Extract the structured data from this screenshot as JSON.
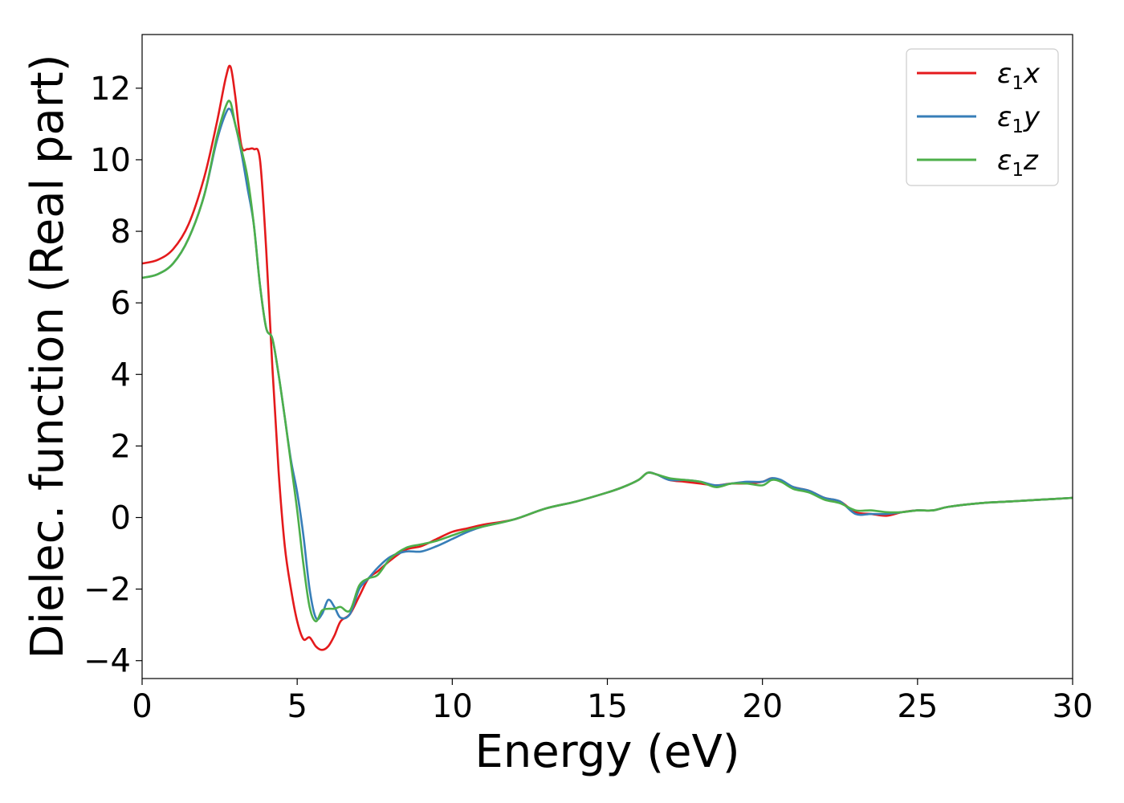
{
  "chart_data": {
    "type": "line",
    "xlabel": "Energy (eV)",
    "ylabel": "Dielec. function (Real part)",
    "xlim": [
      0,
      30
    ],
    "ylim": [
      -4.5,
      13.5
    ],
    "xticks": [
      0,
      5,
      10,
      15,
      20,
      25,
      30
    ],
    "yticks": [
      -4,
      -2,
      0,
      2,
      4,
      6,
      8,
      10,
      12
    ],
    "grid": false,
    "legend_position": "top-right",
    "series": [
      {
        "name": "ε1x",
        "legend": {
          "symbol": "ε",
          "sub": "1",
          "var": "x"
        },
        "color": "#e41a1c",
        "x": [
          0,
          0.5,
          1.0,
          1.5,
          2.0,
          2.4,
          2.7,
          2.85,
          3.0,
          3.2,
          3.4,
          3.6,
          3.8,
          4.0,
          4.2,
          4.4,
          4.6,
          4.8,
          5.0,
          5.2,
          5.4,
          5.6,
          5.8,
          6.0,
          6.2,
          6.4,
          6.7,
          7.0,
          7.3,
          7.6,
          8.0,
          8.5,
          9.0,
          9.5,
          10.0,
          10.5,
          11.0,
          12.0,
          13.0,
          14.0,
          15.0,
          15.5,
          16.0,
          16.3,
          16.6,
          17.0,
          17.5,
          18.0,
          18.5,
          19.0,
          19.5,
          20.0,
          20.3,
          20.6,
          21.0,
          21.5,
          22.0,
          22.5,
          23.0,
          23.5,
          24.0,
          24.5,
          25.0,
          25.5,
          26.0,
          27.0,
          28.0,
          29.0,
          30.0
        ],
        "values": [
          7.1,
          7.2,
          7.5,
          8.2,
          9.5,
          11.0,
          12.3,
          12.6,
          11.8,
          10.4,
          10.3,
          10.3,
          10.0,
          7.5,
          4.2,
          1.3,
          -0.8,
          -2.0,
          -2.9,
          -3.4,
          -3.35,
          -3.6,
          -3.7,
          -3.6,
          -3.3,
          -2.9,
          -2.7,
          -2.2,
          -1.7,
          -1.5,
          -1.2,
          -0.9,
          -0.8,
          -0.6,
          -0.4,
          -0.3,
          -0.2,
          -0.05,
          0.25,
          0.45,
          0.7,
          0.85,
          1.05,
          1.25,
          1.2,
          1.05,
          1.0,
          0.95,
          0.9,
          0.95,
          0.95,
          1.0,
          1.1,
          1.0,
          0.85,
          0.75,
          0.55,
          0.45,
          0.15,
          0.1,
          0.05,
          0.15,
          0.2,
          0.2,
          0.3,
          0.4,
          0.45,
          0.5,
          0.55
        ]
      },
      {
        "name": "ε1y",
        "legend": {
          "symbol": "ε",
          "sub": "1",
          "var": "y"
        },
        "color": "#377eb8",
        "x": [
          0,
          0.5,
          1.0,
          1.5,
          2.0,
          2.4,
          2.7,
          2.85,
          3.0,
          3.2,
          3.4,
          3.6,
          3.8,
          4.0,
          4.2,
          4.4,
          4.6,
          4.8,
          5.0,
          5.2,
          5.4,
          5.6,
          5.8,
          6.0,
          6.2,
          6.4,
          6.7,
          7.0,
          7.3,
          7.6,
          8.0,
          8.5,
          9.0,
          9.5,
          10.0,
          10.5,
          11.0,
          12.0,
          13.0,
          14.0,
          15.0,
          15.5,
          16.0,
          16.3,
          16.6,
          17.0,
          17.5,
          18.0,
          18.5,
          19.0,
          19.5,
          20.0,
          20.3,
          20.6,
          21.0,
          21.5,
          22.0,
          22.5,
          23.0,
          23.5,
          24.0,
          24.5,
          25.0,
          25.5,
          26.0,
          27.0,
          28.0,
          29.0,
          30.0
        ],
        "values": [
          6.7,
          6.8,
          7.1,
          7.8,
          9.0,
          10.5,
          11.3,
          11.4,
          11.0,
          10.2,
          9.2,
          8.2,
          6.5,
          5.3,
          5.0,
          4.0,
          2.8,
          1.6,
          0.7,
          -0.5,
          -2.0,
          -2.8,
          -2.7,
          -2.3,
          -2.5,
          -2.8,
          -2.7,
          -2.0,
          -1.7,
          -1.4,
          -1.1,
          -0.95,
          -0.95,
          -0.8,
          -0.6,
          -0.4,
          -0.25,
          -0.05,
          0.25,
          0.45,
          0.7,
          0.85,
          1.05,
          1.25,
          1.2,
          1.05,
          1.05,
          1.0,
          0.9,
          0.95,
          1.0,
          1.0,
          1.1,
          1.05,
          0.85,
          0.75,
          0.55,
          0.45,
          0.1,
          0.1,
          0.1,
          0.15,
          0.2,
          0.2,
          0.3,
          0.4,
          0.45,
          0.5,
          0.55
        ]
      },
      {
        "name": "ε1z",
        "legend": {
          "symbol": "ε",
          "sub": "1",
          "var": "z"
        },
        "color": "#4daf4a",
        "x": [
          0,
          0.5,
          1.0,
          1.5,
          2.0,
          2.4,
          2.7,
          2.85,
          3.0,
          3.2,
          3.4,
          3.6,
          3.8,
          4.0,
          4.2,
          4.4,
          4.6,
          4.8,
          5.0,
          5.2,
          5.4,
          5.6,
          5.8,
          6.0,
          6.2,
          6.4,
          6.7,
          7.0,
          7.3,
          7.6,
          8.0,
          8.5,
          9.0,
          9.5,
          10.0,
          10.5,
          11.0,
          12.0,
          13.0,
          14.0,
          15.0,
          15.5,
          16.0,
          16.3,
          16.6,
          17.0,
          17.5,
          18.0,
          18.5,
          19.0,
          19.5,
          20.0,
          20.3,
          20.6,
          21.0,
          21.5,
          22.0,
          22.5,
          23.0,
          23.5,
          24.0,
          24.5,
          25.0,
          25.5,
          26.0,
          27.0,
          28.0,
          29.0,
          30.0
        ],
        "values": [
          6.7,
          6.8,
          7.1,
          7.8,
          9.0,
          10.6,
          11.5,
          11.6,
          11.0,
          10.3,
          9.5,
          8.2,
          6.5,
          5.3,
          5.0,
          4.0,
          2.8,
          1.5,
          0.2,
          -1.3,
          -2.5,
          -2.9,
          -2.6,
          -2.55,
          -2.55,
          -2.5,
          -2.6,
          -1.9,
          -1.7,
          -1.6,
          -1.15,
          -0.85,
          -0.75,
          -0.65,
          -0.5,
          -0.35,
          -0.25,
          -0.05,
          0.25,
          0.45,
          0.7,
          0.85,
          1.05,
          1.25,
          1.2,
          1.1,
          1.05,
          1.0,
          0.85,
          0.95,
          0.95,
          0.9,
          1.05,
          1.0,
          0.8,
          0.7,
          0.5,
          0.4,
          0.2,
          0.2,
          0.15,
          0.15,
          0.2,
          0.2,
          0.3,
          0.4,
          0.45,
          0.5,
          0.55
        ]
      }
    ]
  }
}
